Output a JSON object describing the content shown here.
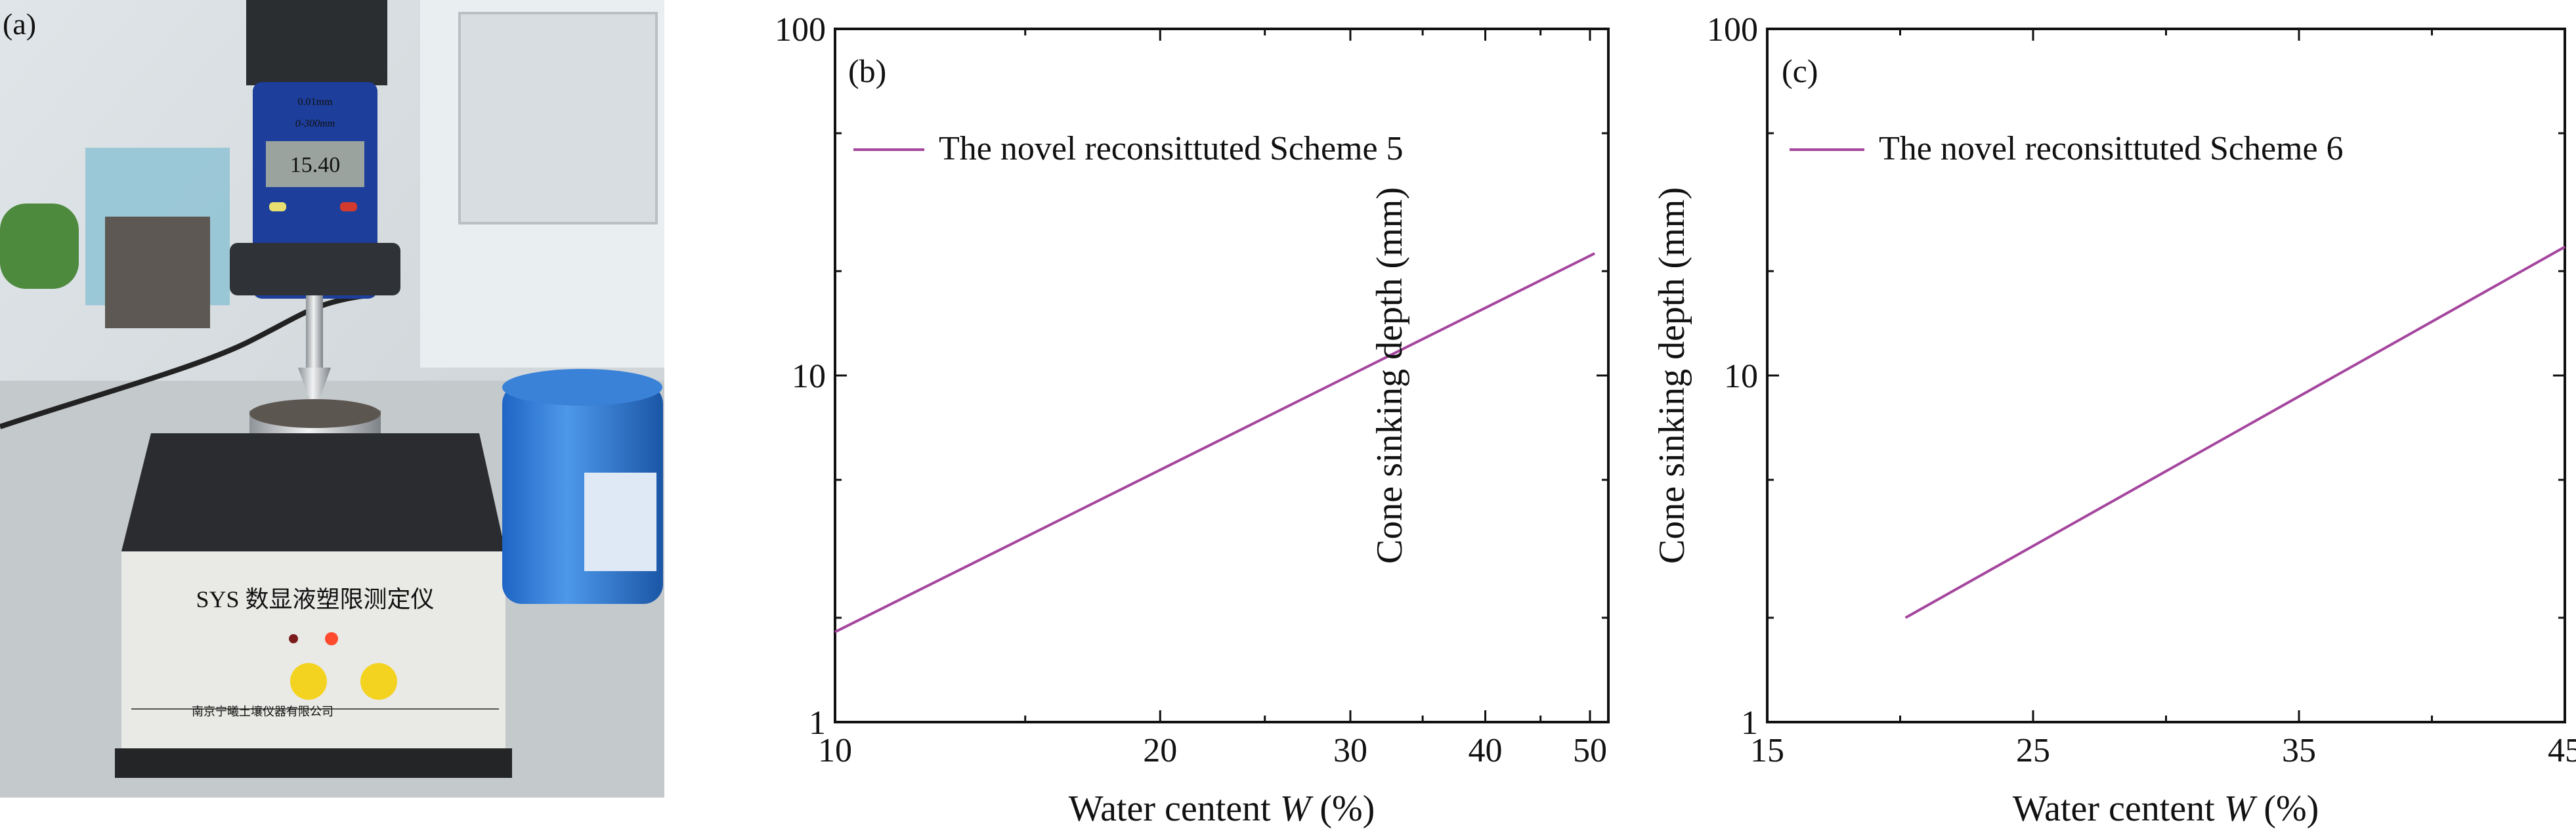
{
  "photo": {
    "panel_label": "(a)",
    "caliper_scale": "0.01mm",
    "caliper_range": "0-300mm",
    "display_reading": "15.40",
    "instrument_name": "SYS 数显液塑限测定仪",
    "manufacturer": "南京宁曦土壤仪器有限公司"
  },
  "chart_data": [
    {
      "type": "line",
      "panel_label": "(b)",
      "xlabel": "Water centent W (%)",
      "ylabel": "Cone sinking depth (mm)",
      "xscale": "log",
      "yscale": "log",
      "xlim": [
        10,
        52
      ],
      "ylim": [
        1,
        100
      ],
      "xticks": [
        10,
        20,
        30,
        40,
        50
      ],
      "yticks": [
        1,
        10,
        100
      ],
      "grid": false,
      "legend_position": "top-left",
      "color": "#a5469e",
      "series": [
        {
          "name": "The novel reconsittuted Scheme 5",
          "x": [
            10,
            50.5
          ],
          "y": [
            1.82,
            22.5
          ]
        }
      ]
    },
    {
      "type": "line",
      "panel_label": "(c)",
      "xlabel": "Water centent W (%)",
      "ylabel": "Cone sinking depth (mm)",
      "xscale": "linear",
      "yscale": "log",
      "xlim": [
        15,
        45
      ],
      "ylim": [
        1,
        100
      ],
      "xticks": [
        15,
        25,
        35,
        45
      ],
      "yticks": [
        1,
        10,
        100
      ],
      "grid": false,
      "legend_position": "top-left",
      "color": "#a5469e",
      "series": [
        {
          "name": "The novel reconsittuted Scheme 6",
          "x": [
            20.2,
            45
          ],
          "y": [
            2.0,
            23.5
          ]
        }
      ]
    }
  ]
}
